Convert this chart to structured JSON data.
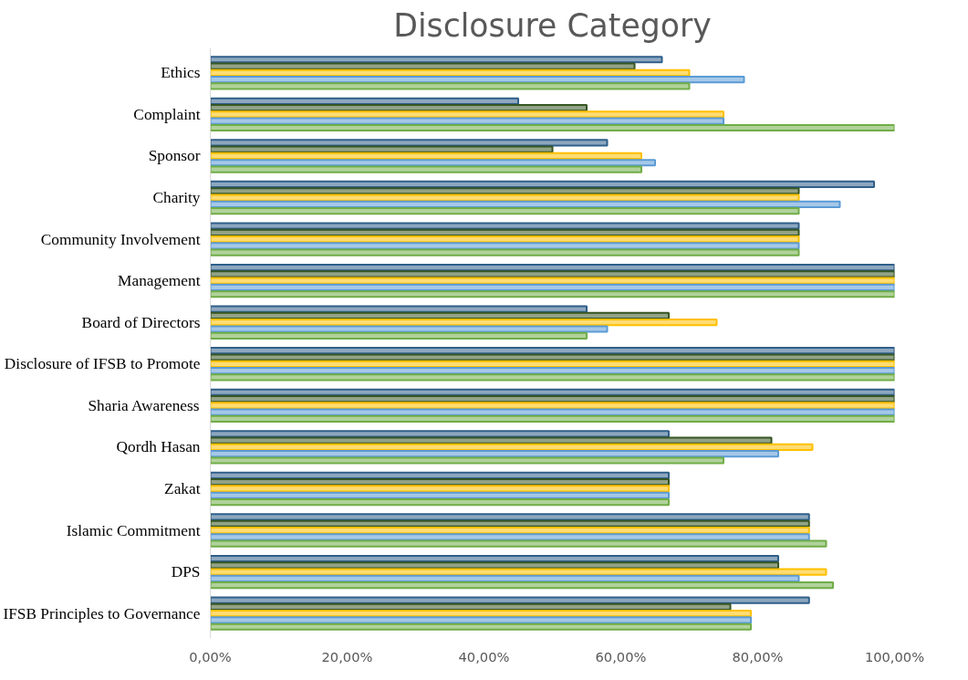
{
  "chart_data": {
    "type": "bar",
    "orientation": "horizontal",
    "title": "Disclosure Category",
    "categories": [
      "Ethics",
      "Complaint",
      "Sponsor",
      "Charity",
      "Community Involvement",
      "Management",
      "Board of Directors",
      "Disclosure of IFSB to Promote",
      "Sharia Awareness",
      "Qordh Hasan",
      "Zakat",
      "Islamic Commitment",
      "DPS",
      "IFSB Principles to Governance"
    ],
    "series": [
      {
        "color": "#2f5f8a",
        "values": [
          66,
          45,
          58,
          97,
          86,
          100,
          55,
          100,
          100,
          67,
          67,
          87.5,
          83,
          87.5
        ]
      },
      {
        "color": "#375623",
        "values": [
          62,
          55,
          50,
          86,
          86,
          100,
          67,
          100,
          100,
          82,
          67,
          87.5,
          83,
          76
        ]
      },
      {
        "color": "#ffc000",
        "values": [
          70,
          75,
          63,
          86,
          86,
          100,
          74,
          100,
          100,
          88,
          67,
          87.5,
          90,
          79
        ]
      },
      {
        "color": "#5b9bd5",
        "values": [
          78,
          75,
          65,
          92,
          86,
          100,
          58,
          100,
          100,
          83,
          67,
          87.5,
          86,
          79
        ]
      },
      {
        "color": "#70ad47",
        "values": [
          70,
          100,
          63,
          86,
          86,
          100,
          55,
          100,
          100,
          75,
          67,
          90,
          91,
          79
        ]
      }
    ],
    "xlim": [
      0,
      100
    ],
    "xticks": [
      {
        "value": 0,
        "label": "0,00%"
      },
      {
        "value": 20,
        "label": "20,00%"
      },
      {
        "value": 40,
        "label": "40,00%"
      },
      {
        "value": 60,
        "label": "60,00%"
      },
      {
        "value": 80,
        "label": "80,00%"
      },
      {
        "value": 100,
        "label": "100,00%"
      }
    ],
    "grid": false
  }
}
